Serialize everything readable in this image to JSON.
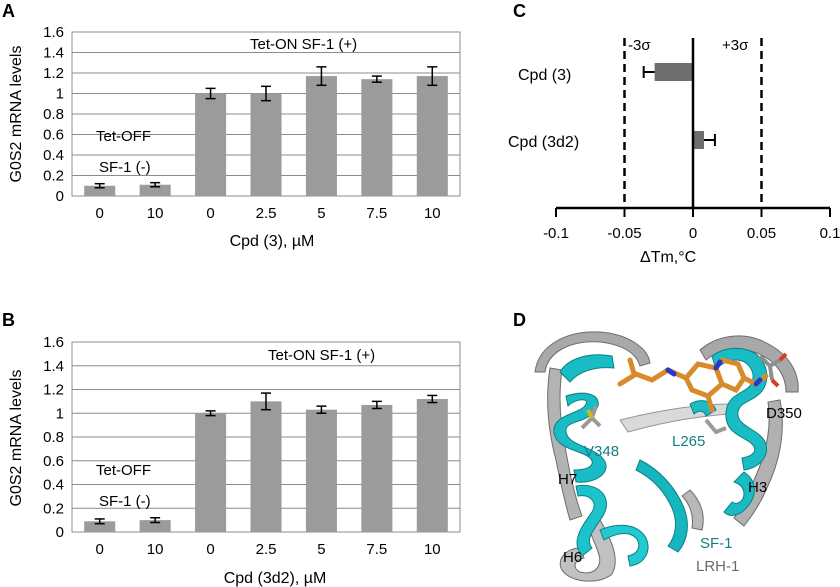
{
  "panels": {
    "a": "A",
    "b": "B",
    "c": "C",
    "d": "D"
  },
  "chart_data": [
    {
      "panel": "A",
      "type": "bar",
      "categories": [
        "0",
        "10",
        "0",
        "2.5",
        "5",
        "7.5",
        "10"
      ],
      "values": [
        0.1,
        0.11,
        1.0,
        1.0,
        1.17,
        1.14,
        1.17
      ],
      "errors": [
        0.02,
        0.02,
        0.05,
        0.07,
        0.09,
        0.03,
        0.09
      ],
      "xlabel": "Cpd (3), µM",
      "ylabel": "G0S2 mRNA levels",
      "ylim": [
        0,
        1.6
      ],
      "yticks": [
        "0",
        "0.2",
        "0.4",
        "0.6",
        "0.8",
        "1",
        "1.2",
        "1.4",
        "1.6"
      ],
      "annotations": {
        "tet_on": "Tet-ON  SF-1 (+)",
        "tet_off_1": "Tet-OFF",
        "tet_off_2": "SF-1 (-)"
      },
      "grid": true,
      "color": "#9b9b9b"
    },
    {
      "panel": "B",
      "type": "bar",
      "categories": [
        "0",
        "10",
        "0",
        "2.5",
        "5",
        "7.5",
        "10"
      ],
      "values": [
        0.09,
        0.1,
        1.0,
        1.1,
        1.03,
        1.07,
        1.12
      ],
      "errors": [
        0.02,
        0.02,
        0.02,
        0.07,
        0.03,
        0.03,
        0.03
      ],
      "xlabel": "Cpd (3d2), µM",
      "ylabel": "G0S2 mRNA levels",
      "ylim": [
        0,
        1.6
      ],
      "yticks": [
        "0",
        "0.2",
        "0.4",
        "0.6",
        "0.8",
        "1",
        "1.2",
        "1.4",
        "1.6"
      ],
      "annotations": {
        "tet_on": "Tet-ON  SF-1 (+)",
        "tet_off_1": "Tet-OFF",
        "tet_off_2": "SF-1 (-)"
      },
      "grid": true,
      "color": "#9b9b9b"
    },
    {
      "panel": "C",
      "type": "bar",
      "orientation": "horizontal",
      "categories": [
        "Cpd (3)",
        "Cpd (3d2)"
      ],
      "values": [
        -0.028,
        0.008
      ],
      "errors": [
        0.008,
        0.008
      ],
      "xlabel": "ΔTm,",
      "xlabel_unit": "°C",
      "xlim": [
        -0.1,
        0.1
      ],
      "xticks": [
        "-0.1",
        "-0.05",
        "0",
        "0.05",
        "0.1"
      ],
      "threshold_lines": [
        -0.05,
        0.05
      ],
      "threshold_labels": [
        "-3σ",
        "+3σ"
      ],
      "color": "#6e6e6e"
    }
  ],
  "structure": {
    "labels": {
      "v348": "V348",
      "l265": "L265",
      "d350": "D350",
      "h7": "H7",
      "h3": "H3",
      "h6": "H6",
      "sf1": "SF-1",
      "lrh1": "LRH-1"
    },
    "colors": {
      "sf1": "#19bcc4",
      "lrh1": "#9a9a9a",
      "ligand": "#d98a2a",
      "label_teal": "#157f86"
    }
  }
}
